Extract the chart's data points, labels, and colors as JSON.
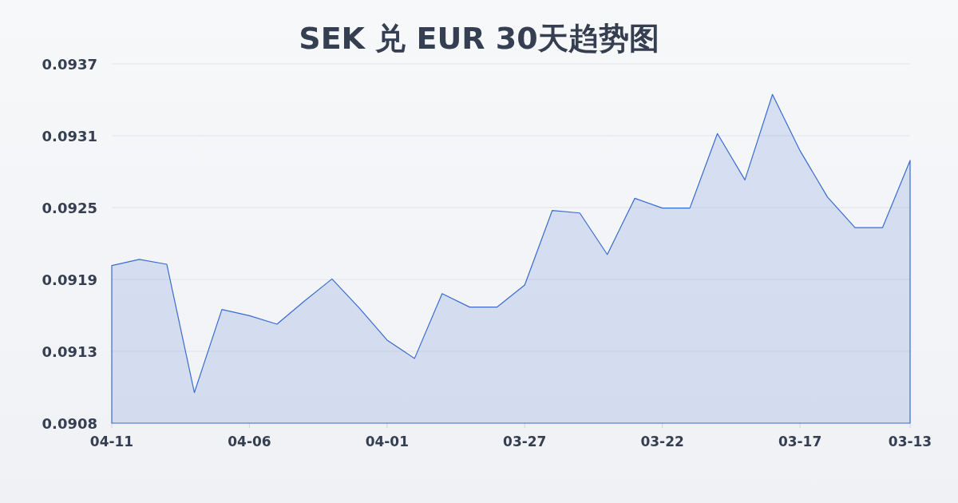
{
  "chart_data": {
    "type": "area",
    "title": "SEK 兑 EUR 30天趋势图",
    "categories": [
      "04-11",
      null,
      null,
      null,
      null,
      "04-06",
      null,
      null,
      null,
      null,
      "04-01",
      null,
      null,
      null,
      null,
      "03-27",
      null,
      null,
      null,
      null,
      "03-22",
      null,
      null,
      null,
      null,
      "03-17",
      null,
      null,
      null,
      "03-13"
    ],
    "values": [
      0.09205,
      0.0921,
      0.09206,
      0.09101,
      0.09169,
      0.09164,
      0.09157,
      0.09176,
      0.09194,
      0.0917,
      0.09144,
      0.09129,
      0.09182,
      0.09171,
      0.09171,
      0.09189,
      0.0925,
      0.09248,
      0.09214,
      0.0926,
      0.09252,
      0.09252,
      0.09313,
      0.09275,
      0.09345,
      0.09299,
      0.09261,
      0.09236,
      0.09236,
      0.09291
    ],
    "color": "#3a6bcf",
    "ylim": [
      0.09076,
      0.0937
    ],
    "yticks": [
      {
        "value": 0.09076,
        "label": "0.0908"
      },
      {
        "value": 0.091348,
        "label": "0.0913"
      },
      {
        "value": 0.091936,
        "label": "0.0919"
      },
      {
        "value": 0.092524,
        "label": "0.0925"
      },
      {
        "value": 0.093112,
        "label": "0.0931"
      },
      0.0937
    ],
    "grid": "y"
  }
}
